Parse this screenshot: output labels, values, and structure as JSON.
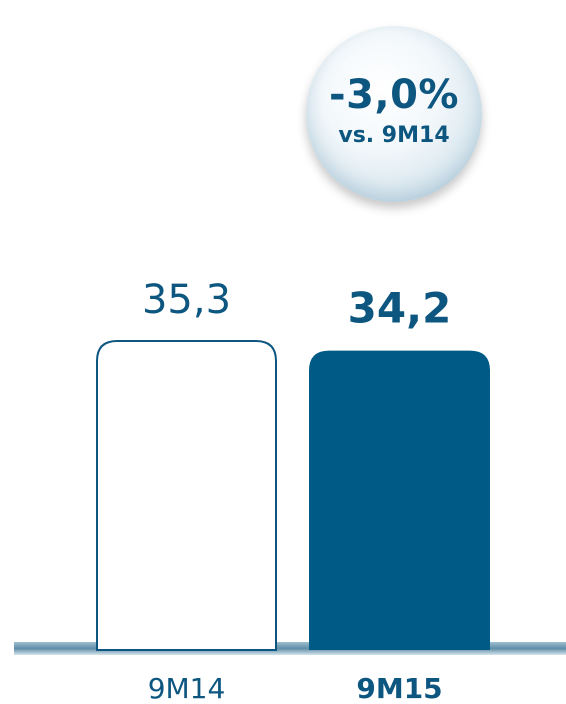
{
  "colors": {
    "bar_fill": "#005a86",
    "bar_outline": "#0d5680",
    "label": "#0d5680",
    "baseline": "#5e8ea8"
  },
  "change_badge": {
    "change": "-3,0%",
    "reference": "vs. 9M14"
  },
  "chart_data": {
    "type": "bar",
    "categories": [
      "9M14",
      "9M15"
    ],
    "values": [
      35.3,
      34.2
    ],
    "value_labels": [
      "35,3",
      "34,2"
    ],
    "title": "",
    "xlabel": "",
    "ylabel": "",
    "ylim": [
      0,
      35.3
    ],
    "grid": false,
    "styles": [
      "outline",
      "filled"
    ],
    "emphasis": [
      false,
      true
    ]
  }
}
